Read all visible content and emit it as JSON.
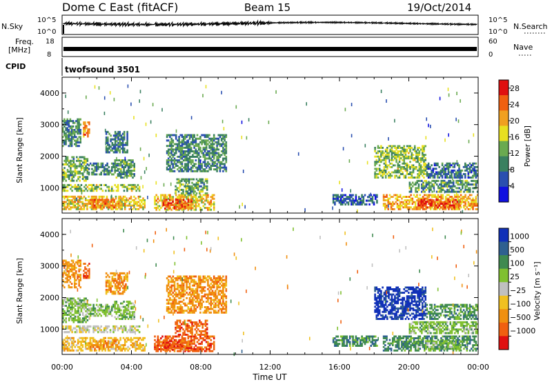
{
  "header": {
    "station": "Dome C East (fitACF)",
    "beam": "Beam 15",
    "date": "19/Oct/2014"
  },
  "noise_panel": {
    "left_label": "N.Sky",
    "left_ticks": [
      "10^5",
      "10^0"
    ],
    "right_label": "N.Search",
    "right_ticks": [
      "10^5",
      "10^0"
    ]
  },
  "freq_panel": {
    "left_label_1": "Freq.",
    "left_label_2": "[MHz]",
    "left_ticks": [
      "18",
      "8"
    ],
    "right_label": "Nave",
    "right_ticks": [
      "60",
      "0"
    ]
  },
  "cpid_panel": {
    "label": "CPID",
    "program": "twofsound 3501"
  },
  "colors": {
    "power_scale": [
      "#1010e0",
      "#2a4fb0",
      "#3a8060",
      "#6aaa50",
      "#e8e020",
      "#f0a020",
      "#f06010",
      "#e01010"
    ],
    "velocity_scale": [
      "#1030b8",
      "#2f6090",
      "#3f8a50",
      "#80c030",
      "#c0c0c0",
      "#f0c020",
      "#f09010",
      "#f06010",
      "#e01010"
    ]
  },
  "chart_data": [
    {
      "type": "heatmap",
      "title": "",
      "xlabel": "",
      "ylabel": "Slant Range [km]",
      "xlim": [
        0,
        24
      ],
      "ylim": [
        200,
        4500
      ],
      "yticks": [
        "1000",
        "2000",
        "3000",
        "4000"
      ],
      "colorbar": {
        "label": "Power [dB]",
        "ticks": [
          "4",
          "8",
          "12",
          "16",
          "20",
          "24",
          "28"
        ],
        "range": [
          0,
          30
        ]
      },
      "regions": [
        {
          "t0": 0.0,
          "t1": 1.1,
          "r0": 2300,
          "r1": 3200,
          "value": 10
        },
        {
          "t0": 1.2,
          "t1": 1.6,
          "r0": 2600,
          "r1": 3100,
          "value": 22
        },
        {
          "t0": 0.0,
          "t1": 1.5,
          "r0": 1200,
          "r1": 2000,
          "value": 12
        },
        {
          "t0": 1.5,
          "t1": 3.0,
          "r0": 1400,
          "r1": 1800,
          "value": 9
        },
        {
          "t0": 3.0,
          "t1": 4.2,
          "r0": 1300,
          "r1": 1900,
          "value": 11
        },
        {
          "t0": 0.0,
          "t1": 4.5,
          "r0": 880,
          "r1": 1120,
          "value": 14
        },
        {
          "t0": 0.0,
          "t1": 4.8,
          "r0": 300,
          "r1": 750,
          "value": 18
        },
        {
          "t0": 1.5,
          "t1": 3.3,
          "r0": 350,
          "r1": 650,
          "value": 22
        },
        {
          "t0": 2.5,
          "t1": 3.8,
          "r0": 2100,
          "r1": 2800,
          "value": 9
        },
        {
          "t0": 5.3,
          "t1": 8.8,
          "r0": 280,
          "r1": 800,
          "value": 18
        },
        {
          "t0": 5.8,
          "t1": 7.5,
          "r0": 320,
          "r1": 650,
          "value": 24
        },
        {
          "t0": 6.5,
          "t1": 8.4,
          "r0": 800,
          "r1": 1300,
          "value": 12
        },
        {
          "t0": 6.0,
          "t1": 9.5,
          "r0": 1500,
          "r1": 2700,
          "value": 10
        },
        {
          "t0": 15.6,
          "t1": 18.2,
          "r0": 450,
          "r1": 800,
          "value": 6
        },
        {
          "t0": 18.0,
          "t1": 21.0,
          "r0": 1300,
          "r1": 2350,
          "value": 14
        },
        {
          "t0": 18.5,
          "t1": 24.0,
          "r0": 300,
          "r1": 800,
          "value": 20
        },
        {
          "t0": 20.5,
          "t1": 23.0,
          "r0": 350,
          "r1": 650,
          "value": 25
        },
        {
          "t0": 20.0,
          "t1": 24.0,
          "r0": 850,
          "r1": 1250,
          "value": 11
        },
        {
          "t0": 21.0,
          "t1": 24.0,
          "r0": 1300,
          "r1": 1800,
          "value": 8
        }
      ]
    },
    {
      "type": "heatmap",
      "title": "",
      "xlabel": "Time UT",
      "ylabel": "Slant Range [km]",
      "xlim": [
        0,
        24
      ],
      "ylim": [
        200,
        4500
      ],
      "yticks": [
        "1000",
        "2000",
        "3000",
        "4000"
      ],
      "xticks": [
        "00:00",
        "04:00",
        "08:00",
        "12:00",
        "16:00",
        "20:00",
        "00:00"
      ],
      "colorbar": {
        "label": "Velocity [m s⁻¹]",
        "ticks": [
          "1000",
          "500",
          "100",
          "25",
          "−25",
          "−100",
          "−500",
          "−1000"
        ]
      },
      "regions": [
        {
          "t0": 0.0,
          "t1": 1.1,
          "r0": 2300,
          "r1": 3200,
          "value": -2
        },
        {
          "t0": 1.2,
          "t1": 1.6,
          "r0": 2600,
          "r1": 3100,
          "value": -3
        },
        {
          "t0": 0.0,
          "t1": 1.5,
          "r0": 1200,
          "r1": 2000,
          "value": 1
        },
        {
          "t0": 1.5,
          "t1": 3.0,
          "r0": 1400,
          "r1": 1800,
          "value": 1
        },
        {
          "t0": 3.0,
          "t1": 4.2,
          "r0": 1300,
          "r1": 1900,
          "value": 1
        },
        {
          "t0": 0.0,
          "t1": 4.5,
          "r0": 880,
          "r1": 1120,
          "value": 0
        },
        {
          "t0": 0.0,
          "t1": 4.8,
          "r0": 300,
          "r1": 750,
          "value": -1
        },
        {
          "t0": 1.5,
          "t1": 3.3,
          "r0": 350,
          "r1": 650,
          "value": -2
        },
        {
          "t0": 2.5,
          "t1": 3.8,
          "r0": 2100,
          "r1": 2800,
          "value": -2
        },
        {
          "t0": 5.3,
          "t1": 8.8,
          "r0": 280,
          "r1": 800,
          "value": -3
        },
        {
          "t0": 5.8,
          "t1": 7.5,
          "r0": 320,
          "r1": 650,
          "value": -3
        },
        {
          "t0": 6.5,
          "t1": 8.4,
          "r0": 800,
          "r1": 1300,
          "value": -3
        },
        {
          "t0": 6.0,
          "t1": 9.5,
          "r0": 1500,
          "r1": 2700,
          "value": -2
        },
        {
          "t0": 15.6,
          "t1": 18.2,
          "r0": 450,
          "r1": 800,
          "value": 2
        },
        {
          "t0": 18.0,
          "t1": 21.0,
          "r0": 1300,
          "r1": 2350,
          "value": 4
        },
        {
          "t0": 18.5,
          "t1": 24.0,
          "r0": 300,
          "r1": 800,
          "value": 2
        },
        {
          "t0": 20.5,
          "t1": 23.0,
          "r0": 350,
          "r1": 650,
          "value": 1
        },
        {
          "t0": 20.0,
          "t1": 24.0,
          "r0": 850,
          "r1": 1250,
          "value": 1
        },
        {
          "t0": 21.0,
          "t1": 24.0,
          "r0": 1300,
          "r1": 1800,
          "value": 2
        }
      ]
    }
  ]
}
